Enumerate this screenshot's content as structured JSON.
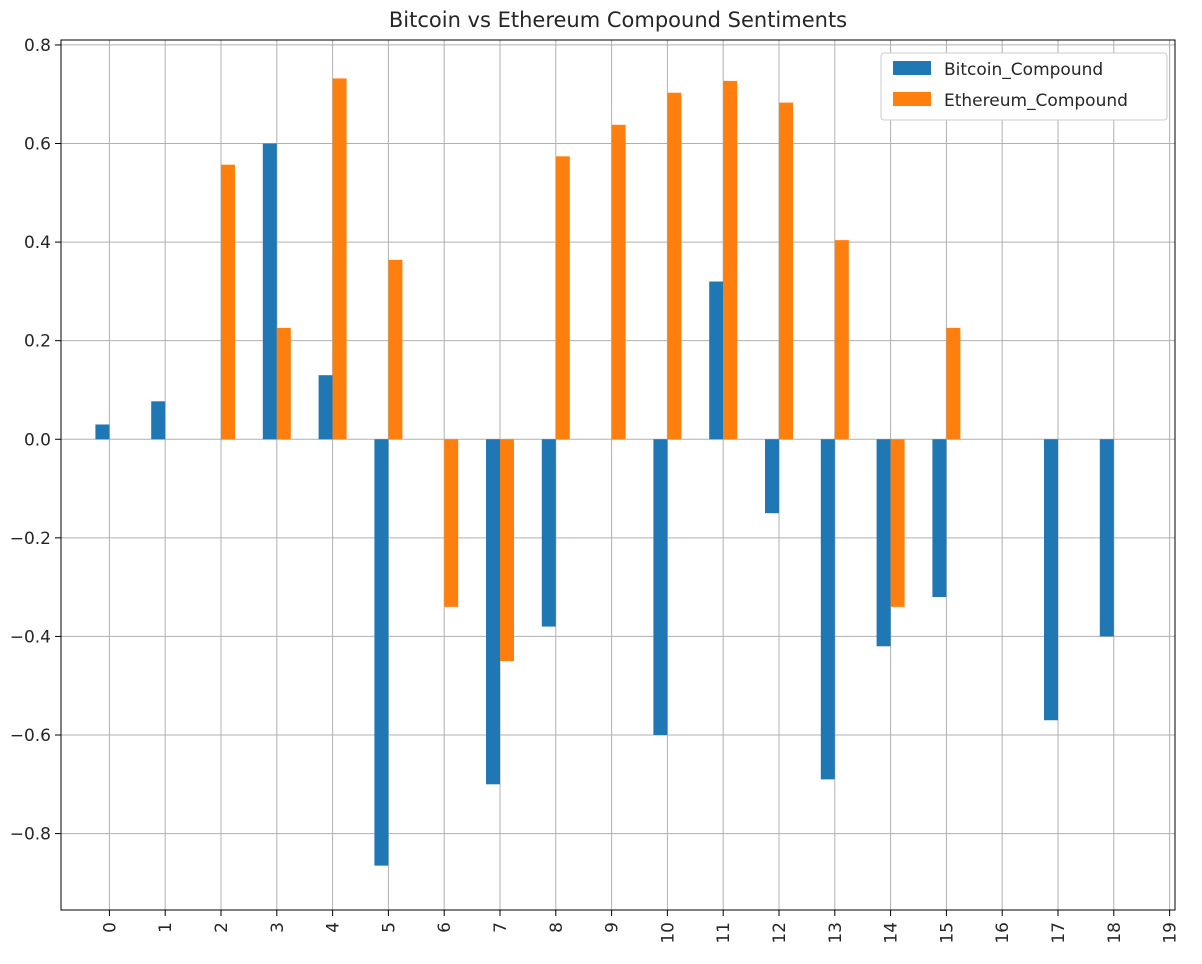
{
  "chart_data": {
    "type": "bar",
    "title": "Bitcoin vs Ethereum Compound Sentiments",
    "xlabel": "",
    "ylabel": "",
    "categories": [
      "0",
      "1",
      "2",
      "3",
      "4",
      "5",
      "6",
      "7",
      "8",
      "9",
      "10",
      "11",
      "12",
      "13",
      "14",
      "15",
      "16",
      "17",
      "18",
      "19"
    ],
    "series": [
      {
        "name": "Bitcoin_Compound",
        "color": "#1f77b4",
        "values": [
          0.03,
          0.077,
          0,
          0.6,
          0.13,
          -0.865,
          0,
          -0.7,
          -0.38,
          0,
          -0.6,
          0.32,
          -0.15,
          -0.69,
          -0.42,
          -0.32,
          0,
          -0.57,
          -0.4,
          0
        ]
      },
      {
        "name": "Ethereum_Compound",
        "color": "#ff7f0e",
        "values": [
          0,
          0,
          0.557,
          0.226,
          0.732,
          0.364,
          -0.34,
          -0.45,
          0.574,
          0.638,
          0.703,
          0.727,
          0.683,
          0.404,
          -0.34,
          0.226,
          0,
          0,
          0,
          0
        ]
      }
    ],
    "ylim": [
      -0.955,
      0.81
    ],
    "yticks": [
      "0.8",
      "0.6",
      "0.4",
      "0.2",
      "0.0",
      "−0.2",
      "−0.4",
      "−0.6",
      "−0.8"
    ],
    "grid": true,
    "legend_position": "top-right"
  }
}
